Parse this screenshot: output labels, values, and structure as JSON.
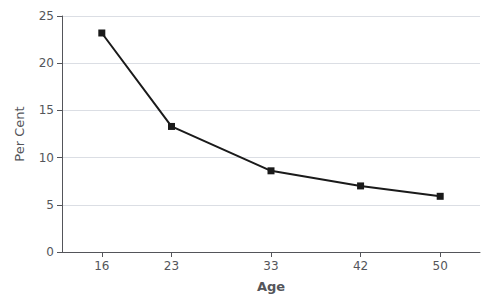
{
  "chart_data": {
    "type": "line",
    "x": [
      16,
      23,
      33,
      42,
      50
    ],
    "values": [
      23.2,
      13.3,
      8.6,
      7.0,
      5.9
    ],
    "color": "#1a1a1a",
    "marker": "square",
    "xlabel": "Age",
    "ylabel": "Per Cent",
    "xlim": [
      12,
      54
    ],
    "ylim": [
      0,
      25
    ],
    "xticks": [
      16,
      23,
      33,
      42,
      50
    ],
    "yticks": [
      0,
      5,
      10,
      15,
      20,
      25
    ],
    "grid": true
  }
}
